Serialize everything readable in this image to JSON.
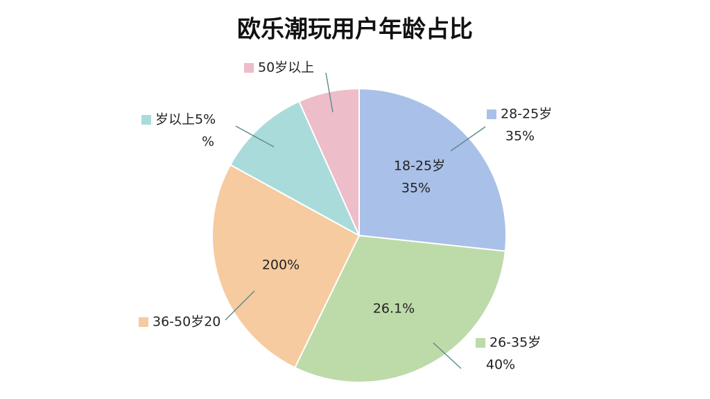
{
  "chart_data": {
    "type": "pie",
    "title": "欧乐潮玩用户年龄占比",
    "categories": [
      "28-25岁",
      "26-35岁",
      "36-50岁20",
      "岁以上5%",
      "50岁以上"
    ],
    "values": [
      26.7,
      30.5,
      25.8,
      10.3,
      6.7
    ],
    "colors": [
      "#a9c0e8",
      "#bddaa9",
      "#f6cba0",
      "#a9dbdb",
      "#edbdc9"
    ],
    "annotations": [
      "35%",
      "18-25岁",
      "35%",
      "26.1%",
      "40%",
      "200%",
      "%"
    ]
  }
}
